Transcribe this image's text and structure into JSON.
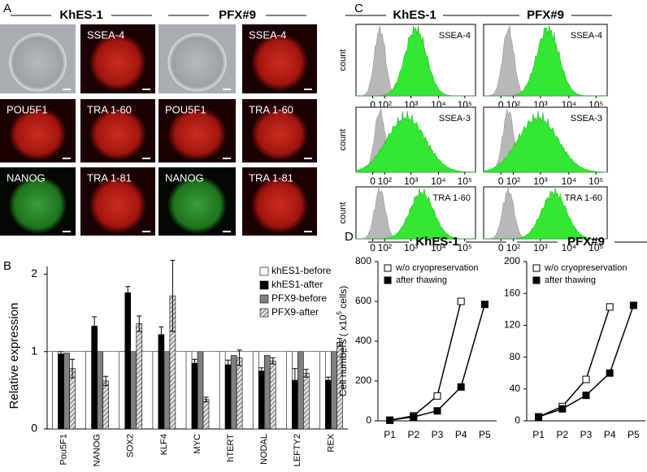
{
  "panel_a": {
    "label": "A",
    "groups": [
      "KhES-1",
      "PFX#9"
    ],
    "stain_labels": [
      [
        "SSEA-4",
        "POU5F1",
        "TRA 1-60",
        "NANOG",
        "TRA 1-81"
      ],
      [
        "SSEA-4",
        "POU5F1",
        "TRA 1-60",
        "NANOG",
        "TRA 1-81"
      ]
    ]
  },
  "panel_c": {
    "label": "C",
    "columns": [
      "KhES-1",
      "PFX#9"
    ],
    "rows": [
      "SSEA-4",
      "SSEA-3",
      "TRA 1-60"
    ],
    "y_label": "count",
    "x_tick_labels": [
      "0",
      "10²",
      "10³",
      "10⁴",
      "10⁵"
    ]
  },
  "chart_data": [
    {
      "type": "bar",
      "label": "B",
      "y_label": "Relative expression",
      "categories": [
        "Pou5F1",
        "NANOG",
        "SOX2",
        "KLF4",
        "MYC",
        "hTERT",
        "NODAL",
        "LEFTY2",
        "REX"
      ],
      "series": [
        {
          "name": "khES1-before",
          "color": "#ffffff",
          "values": [
            1,
            1,
            1,
            1,
            1,
            1,
            1,
            1,
            1
          ]
        },
        {
          "name": "khES1-after",
          "color": "#000000",
          "values": [
            0.97,
            1.33,
            1.76,
            1.22,
            0.85,
            0.83,
            0.75,
            0.63,
            0.63
          ],
          "errors": [
            0.03,
            0.12,
            0.08,
            0.1,
            0.05,
            0.06,
            0.04,
            0.15,
            0.04
          ]
        },
        {
          "name": "PFX9-before",
          "color": "#808080",
          "values": [
            0.98,
            1,
            1,
            1,
            1,
            0.95,
            0.95,
            1,
            1
          ]
        },
        {
          "name": "PFX9-after",
          "color": "#b0b0b0",
          "hatch": true,
          "values": [
            0.78,
            0.62,
            1.36,
            1.72,
            0.38,
            0.92,
            0.88,
            0.72,
            1.12
          ],
          "errors": [
            0.12,
            0.06,
            0.1,
            0.46,
            0.03,
            0.1,
            0.04,
            0.05,
            0.05
          ]
        }
      ],
      "ylim": [
        0,
        2.1
      ],
      "yticks": [
        0,
        1,
        2
      ],
      "legend": "upper right"
    },
    {
      "type": "line",
      "label": "D",
      "title": "KhES-1",
      "y_label": "Cell numbers ( x10",
      "y_label_sup": "5",
      "y_label_end": " cells)",
      "categories": [
        "P1",
        "P2",
        "P3",
        "P4",
        "P5"
      ],
      "series": [
        {
          "name": "w/o cryopreservation",
          "color": "#ffffff",
          "values": [
            3,
            25,
            125,
            600,
            null
          ]
        },
        {
          "name": "after thawing",
          "color": "#000000",
          "values": [
            3,
            20,
            50,
            170,
            585
          ]
        }
      ],
      "ylim": [
        0,
        800
      ],
      "yticks": [
        0,
        200,
        400,
        600,
        800
      ],
      "legend": "upper left"
    },
    {
      "type": "line",
      "title": "PFX#9",
      "categories": [
        "P1",
        "P2",
        "P3",
        "P4",
        "P5"
      ],
      "series": [
        {
          "name": "w/o cryopreservation",
          "color": "#ffffff",
          "values": [
            5,
            18,
            52,
            143,
            null
          ]
        },
        {
          "name": "after thawing",
          "color": "#000000",
          "values": [
            5,
            15,
            32,
            60,
            145
          ]
        }
      ],
      "ylim": [
        0,
        200
      ],
      "yticks": [
        0,
        40,
        80,
        120,
        160,
        200
      ],
      "legend": "upper left"
    }
  ]
}
